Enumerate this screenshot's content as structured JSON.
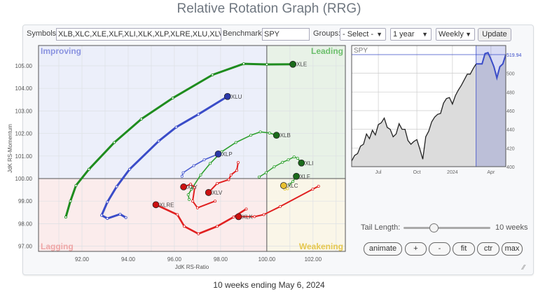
{
  "title": "Relative Rotation Graph (RRG)",
  "controls": {
    "symbols_label": "Symbols:",
    "symbols_value": "XLB,XLC,XLE,XLF,XLI,XLK,XLP,XLRE,XLU,XLV,XL",
    "benchmark_label": "Benchmark:",
    "benchmark_value": "SPY",
    "groups_label": "Groups:",
    "groups_value": "- Select -",
    "period_value": "1 year",
    "frequency_value": "Weekly",
    "update_label": "Update"
  },
  "rrg": {
    "quadrants": {
      "improving": "Improving",
      "leading": "Leading",
      "lagging": "Lagging",
      "weakening": "Weakening"
    },
    "quadrant_colors": {
      "improving": "#eceffa",
      "leading": "#e8f2e7",
      "lagging": "#fbecec",
      "weakening": "#faf6e8"
    },
    "quadrant_label_colors": {
      "improving": "#8a93e0",
      "leading": "#6cbf6c",
      "lagging": "#f0a6a6",
      "weakening": "#e6c84e"
    },
    "xlabel": "JdK RS-Ratio",
    "ylabel": "JdK RS-Momentum",
    "xlim": [
      90.12,
      103.4
    ],
    "ylim": [
      96.77,
      105.9
    ],
    "x_ticks": [
      "92.00",
      "94.00",
      "96.00",
      "98.00",
      "100.00",
      "102.00"
    ],
    "y_ticks": [
      "97.00",
      "98.00",
      "99.00",
      "100.00",
      "101.00",
      "102.00",
      "103.00",
      "104.00",
      "105.00"
    ],
    "series": [
      {
        "name": "XLE",
        "color": "#1e8c1e",
        "head": "#1a6b1a",
        "width": 3,
        "points": [
          [
            91.3,
            98.29
          ],
          [
            91.5,
            99.0
          ],
          [
            91.74,
            99.69
          ],
          [
            92.3,
            100.41
          ],
          [
            93.4,
            101.6
          ],
          [
            94.57,
            102.64
          ],
          [
            95.93,
            103.57
          ],
          [
            97.65,
            104.6
          ],
          [
            99.0,
            105.09
          ],
          [
            100.0,
            105.06
          ],
          [
            101.13,
            105.07
          ]
        ]
      },
      {
        "name": "XLU",
        "color": "#3a4cc8",
        "head": "#2a38a8",
        "width": 3,
        "points": [
          [
            93.9,
            98.27
          ],
          [
            93.65,
            98.42
          ],
          [
            93.1,
            98.23
          ],
          [
            92.85,
            98.37
          ],
          [
            93.1,
            98.96
          ],
          [
            93.5,
            99.64
          ],
          [
            94.06,
            100.41
          ],
          [
            95.32,
            101.66
          ],
          [
            96.08,
            102.28
          ],
          [
            97.04,
            102.85
          ],
          [
            98.3,
            103.64
          ]
        ]
      },
      {
        "name": "XLB",
        "color": "#2ea02e",
        "head": "#1a6b1a",
        "width": 1.6,
        "points": [
          [
            96.64,
            99.07
          ],
          [
            96.6,
            99.28
          ],
          [
            96.74,
            99.53
          ],
          [
            97.14,
            100.16
          ],
          [
            97.55,
            100.67
          ],
          [
            98.05,
            101.19
          ],
          [
            98.66,
            101.6
          ],
          [
            99.31,
            101.92
          ],
          [
            99.72,
            102.07
          ],
          [
            100.12,
            102.02
          ],
          [
            100.42,
            101.92
          ]
        ]
      },
      {
        "name": "XLP",
        "color": "#4a5ccf",
        "head": "#2a38a8",
        "width": 1.6,
        "points": [
          [
            96.33,
            100.1
          ],
          [
            96.38,
            100.26
          ],
          [
            96.84,
            100.57
          ],
          [
            97.29,
            100.83
          ],
          [
            97.9,
            101.09
          ]
        ]
      },
      {
        "name": "XLI",
        "color": "#2ea02e",
        "head": "#1a6b1a",
        "width": 1.4,
        "points": [
          [
            99.67,
            100.07
          ],
          [
            99.97,
            100.26
          ],
          [
            100.32,
            100.52
          ],
          [
            100.68,
            100.72
          ],
          [
            100.93,
            100.83
          ],
          [
            101.18,
            100.96
          ],
          [
            101.33,
            100.9
          ],
          [
            101.5,
            100.69
          ]
        ]
      },
      {
        "name": "XLF",
        "color": "#2ea02e",
        "head": "#1a6b1a",
        "width": 1.4,
        "points": [
          [
            100.98,
            99.74
          ],
          [
            101.13,
            99.87
          ],
          [
            101.28,
            100.1
          ]
        ]
      },
      {
        "name": "XLC",
        "color": "#e8c830",
        "head": "#e8c030",
        "width": 1.4,
        "points": [
          [
            100.9,
            99.55
          ],
          [
            100.78,
            99.53
          ],
          [
            100.73,
            99.69
          ]
        ]
      },
      {
        "name": "XLV",
        "color": "#e02020",
        "head": "#cc1010",
        "width": 2,
        "points": [
          [
            98.76,
            100.71
          ],
          [
            98.7,
            100.36
          ],
          [
            98.45,
            100.16
          ],
          [
            98.35,
            99.95
          ],
          [
            97.85,
            99.78
          ],
          [
            97.48,
            99.38
          ]
        ]
      },
      {
        "name": "XLY",
        "color": "#e02020",
        "head": "#cc1010",
        "width": 2,
        "points": [
          [
            97.76,
            99.0
          ],
          [
            97.0,
            98.7
          ],
          [
            96.79,
            99.0
          ],
          [
            96.88,
            99.6
          ],
          [
            96.7,
            99.75
          ],
          [
            96.4,
            99.63
          ]
        ]
      },
      {
        "name": "XLRE",
        "color": "#e02020",
        "head": "#cc1010",
        "width": 2.6,
        "points": [
          [
            99.11,
            98.65
          ],
          [
            98.56,
            98.29
          ],
          [
            97.85,
            97.88
          ],
          [
            97.04,
            97.55
          ],
          [
            96.43,
            97.88
          ],
          [
            96.13,
            98.4
          ],
          [
            95.2,
            98.84
          ]
        ]
      },
      {
        "name": "XLK",
        "color": "#e02020",
        "head": "#cc1010",
        "width": 2,
        "points": [
          [
            102.24,
            99.66
          ],
          [
            101.99,
            99.53
          ],
          [
            100.58,
            98.76
          ],
          [
            99.87,
            98.4
          ],
          [
            99.47,
            98.31
          ],
          [
            98.78,
            98.31
          ]
        ]
      }
    ]
  },
  "benchmark_chart": {
    "symbol": "SPY",
    "last_value": "519.94",
    "ylim": [
      400,
      529.7
    ],
    "y_ticks": [
      "400",
      "420",
      "440",
      "460",
      "480",
      "500"
    ],
    "x_ticks": [
      {
        "label": "Jul",
        "week": 9
      },
      {
        "label": "Oct",
        "week": 22
      },
      {
        "label": "2024",
        "week": 34
      },
      {
        "label": "Apr",
        "week": 47
      }
    ],
    "highlight_from_week": 42,
    "line_color": "#222222",
    "highlight_color": "#3a4cc8",
    "values": [
      406,
      412,
      414,
      422,
      424,
      435,
      430,
      439,
      434,
      445,
      447,
      452,
      442,
      440,
      432,
      435,
      446,
      440,
      440,
      428,
      424,
      427,
      429,
      419,
      408,
      432,
      438,
      448,
      453,
      456,
      457,
      468,
      473,
      474,
      467,
      476,
      482,
      487,
      493,
      499,
      499,
      505,
      510,
      510,
      510,
      521,
      522,
      515,
      507,
      495,
      507,
      510,
      519.94
    ]
  },
  "tail": {
    "label": "Tail Length:",
    "value": "10 weeks",
    "fraction": 0.35
  },
  "buttons": {
    "animate": "animate",
    "plus": "+",
    "minus": "-",
    "fit": "fit",
    "ctr": "ctr",
    "max": "max"
  },
  "footer": "10 weeks ending May 6, 2024"
}
